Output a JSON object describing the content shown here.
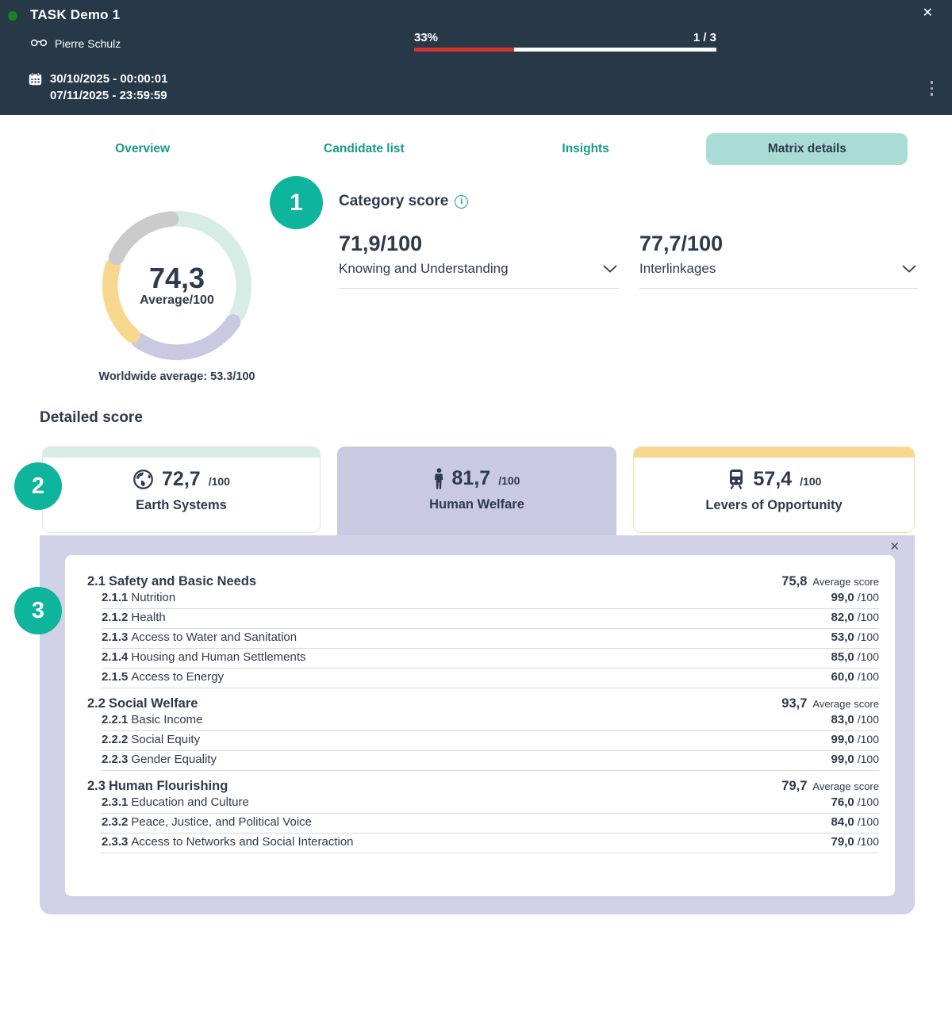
{
  "header": {
    "title": "TASK Demo 1",
    "user": "Pierre Schulz",
    "date_start": "30/10/2025 - 00:00:01",
    "date_end": "07/11/2025 - 23:59:59",
    "progress_percent_label": "33%",
    "progress_value": 33,
    "progress_step_label": "1 / 3"
  },
  "icons": {
    "close": "✕",
    "info": "i",
    "status_dot_color": "#1c7f1f",
    "progress_red": "#d23430",
    "accent_teal": "#0eb49c",
    "tab_teal": "#189a8c"
  },
  "tabs": [
    {
      "label": "Overview",
      "active": false
    },
    {
      "label": "Candidate list",
      "active": false
    },
    {
      "label": "Insights",
      "active": false
    },
    {
      "label": "Matrix details",
      "active": true
    }
  ],
  "overview": {
    "donut": {
      "value_label": "74,3",
      "caption": "Average/100",
      "segments": [
        {
          "name": "mint",
          "color": "#d8ece6",
          "start": 0,
          "span": 115
        },
        {
          "name": "lavender",
          "color": "#c9c9e2",
          "start": 123,
          "span": 92
        },
        {
          "name": "yellow",
          "color": "#f8d88e",
          "start": 222,
          "span": 65
        },
        {
          "name": "gray",
          "color": "#cbcbcb",
          "start": 295,
          "span": 60
        }
      ]
    },
    "worldwide_average": "Worldwide average: 53.3/100"
  },
  "annotations": {
    "badge1": "1",
    "badge2": "2",
    "badge3": "3"
  },
  "category_score": {
    "title": "Category score",
    "items": [
      {
        "score": "71,9/100",
        "label": "Knowing and Understanding"
      },
      {
        "score": "77,7/100",
        "label": "Interlinkages"
      }
    ]
  },
  "detailed_score": {
    "title": "Detailed score",
    "cards": [
      {
        "icon": "globe-icon",
        "score": "72,7",
        "max": "/100",
        "label": "Earth Systems"
      },
      {
        "icon": "person-icon",
        "score": "81,7",
        "max": "/100",
        "label": "Human Welfare"
      },
      {
        "icon": "train-icon",
        "score": "57,4",
        "max": "/100",
        "label": "Levers of Opportunity"
      }
    ]
  },
  "detail_panel": {
    "sections": [
      {
        "code": "2.1",
        "title": "Safety and Basic Needs",
        "score": "75,8",
        "score_suffix": "Average score",
        "rows": [
          {
            "code": "2.1.1",
            "label": "Nutrition",
            "score": "99,0",
            "suffix": "/100"
          },
          {
            "code": "2.1.2",
            "label": "Health",
            "score": "82,0",
            "suffix": "/100"
          },
          {
            "code": "2.1.3",
            "label": "Access to Water and Sanitation",
            "score": "53,0",
            "suffix": "/100"
          },
          {
            "code": "2.1.4",
            "label": "Housing and Human Settlements",
            "score": "85,0",
            "suffix": "/100"
          },
          {
            "code": "2.1.5",
            "label": "Access to Energy",
            "score": "60,0",
            "suffix": "/100"
          }
        ]
      },
      {
        "code": "2.2",
        "title": "Social Welfare",
        "score": "93,7",
        "score_suffix": "Average score",
        "rows": [
          {
            "code": "2.2.1",
            "label": "Basic Income",
            "score": "83,0",
            "suffix": "/100"
          },
          {
            "code": "2.2.2",
            "label": "Social Equity",
            "score": "99,0",
            "suffix": "/100"
          },
          {
            "code": "2.2.3",
            "label": "Gender Equality",
            "score": "99,0",
            "suffix": "/100"
          }
        ]
      },
      {
        "code": "2.3",
        "title": "Human Flourishing",
        "score": "79,7",
        "score_suffix": "Average score",
        "rows": [
          {
            "code": "2.3.1",
            "label": "Education and Culture",
            "score": "76,0",
            "suffix": "/100"
          },
          {
            "code": "2.3.2",
            "label": "Peace, Justice, and Political Voice",
            "score": "84,0",
            "suffix": "/100"
          },
          {
            "code": "2.3.3",
            "label": "Access to Networks and Social Interaction",
            "score": "79,0",
            "suffix": "/100"
          }
        ]
      }
    ]
  }
}
